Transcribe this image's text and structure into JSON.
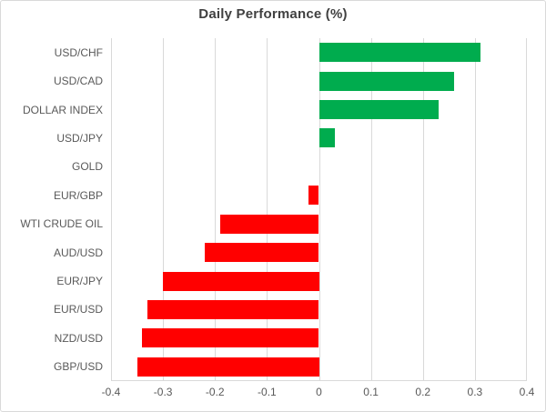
{
  "chart": {
    "colors": {
      "positive": "#00AC4E",
      "negative": "#FF0000",
      "grid": "#D9D9D9",
      "axis_text": "#595959",
      "title_text": "#404040",
      "background": "#FFFFFF"
    }
  },
  "chart_data": {
    "type": "bar",
    "orientation": "horizontal",
    "title": "Daily Performance (%)",
    "categories": [
      "USD/CHF",
      "USD/CAD",
      "DOLLAR INDEX",
      "USD/JPY",
      "GOLD",
      "EUR/GBP",
      "WTI CRUDE OIL",
      "AUD/USD",
      "EUR/JPY",
      "EUR/USD",
      "NZD/USD",
      "GBP/USD"
    ],
    "values": [
      0.31,
      0.26,
      0.23,
      0.03,
      0.0,
      -0.02,
      -0.19,
      -0.22,
      -0.3,
      -0.33,
      -0.34,
      -0.35
    ],
    "xlim": [
      -0.4,
      0.4
    ],
    "xticks": [
      -0.4,
      -0.3,
      -0.2,
      -0.1,
      0,
      0.1,
      0.2,
      0.3,
      0.4
    ],
    "xtick_labels": [
      "-0.4",
      "-0.3",
      "-0.2",
      "-0.1",
      "0",
      "0.1",
      "0.2",
      "0.3",
      "0.4"
    ],
    "xlabel": "",
    "ylabel": "",
    "grid": true,
    "legend": "none",
    "color_rule": "positive values green, negative values red"
  }
}
